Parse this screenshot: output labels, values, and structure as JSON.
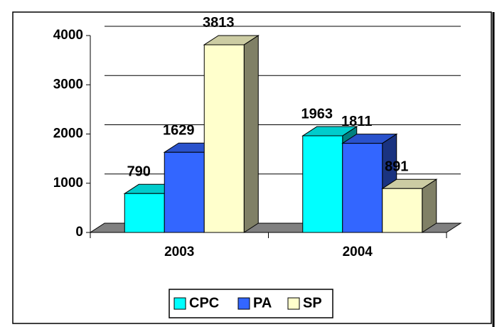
{
  "chart_data": {
    "type": "bar3d",
    "categories": [
      "2003",
      "2004"
    ],
    "series": [
      {
        "name": "CPC",
        "color": "#00ffff",
        "values": [
          790,
          1963
        ]
      },
      {
        "name": "PA",
        "color": "#3366ff",
        "values": [
          1629,
          1811
        ]
      },
      {
        "name": "SP",
        "color": "#ffffcc",
        "values": [
          3813,
          891
        ]
      }
    ],
    "ylim": [
      0,
      4000
    ],
    "yticks": [
      0,
      1000,
      2000,
      3000,
      4000
    ],
    "grid": true,
    "legend": "bottom"
  }
}
